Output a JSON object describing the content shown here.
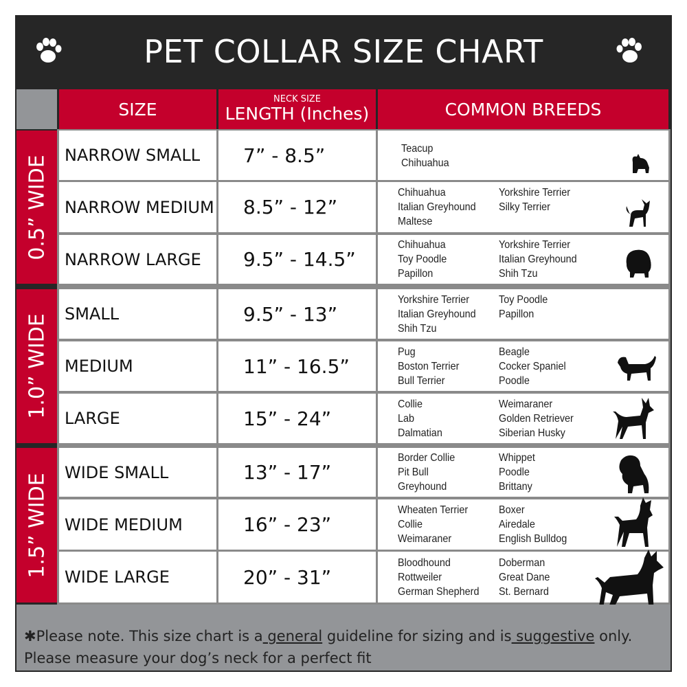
{
  "title": "PET COLLAR SIZE CHART",
  "colors": {
    "header_bg": "#262626",
    "accent_red": "#c4002c",
    "gray": "#939598"
  },
  "headers": {
    "size": "SIZE",
    "length_small": "NECK SIZE",
    "length": "LENGTH (Inches)",
    "breeds": "COMMON BREEDS"
  },
  "groups": [
    {
      "label": "0.5” WIDE"
    },
    {
      "label": "1.0” WIDE"
    },
    {
      "label": "1.5” WIDE"
    }
  ],
  "rows": [
    {
      "size": "NARROW SMALL",
      "length": "7” - 8.5”",
      "col1": [
        "Teacup",
        "Chihuahua"
      ],
      "col2": [],
      "icon": "yorkie-silhouette-icon"
    },
    {
      "size": "NARROW MEDIUM",
      "length": "8.5” - 12”",
      "col1": [
        "Chihuahua",
        "Italian Greyhound",
        "Maltese"
      ],
      "col2": [
        "Yorkshire Terrier",
        "Silky Terrier"
      ],
      "icon": "chihuahua-silhouette-icon"
    },
    {
      "size": "NARROW LARGE",
      "length": "9.5” - 14.5”",
      "col1": [
        "Chihuahua",
        "Toy Poodle",
        "Papillon"
      ],
      "col2": [
        "Yorkshire Terrier",
        "Italian Greyhound",
        "Shih Tzu"
      ],
      "icon": "pomeranian-silhouette-icon"
    },
    {
      "size": "SMALL",
      "length": "9.5” - 13”",
      "col1": [
        "Yorkshire Terrier",
        "Italian Greyhound",
        "Shih Tzu"
      ],
      "col2": [
        "Toy Poodle",
        "Papillon"
      ],
      "icon": "pomeranian-silhouette-icon"
    },
    {
      "size": "MEDIUM",
      "length": "11” - 16.5”",
      "col1": [
        "Pug",
        "Boston Terrier",
        "Bull Terrier"
      ],
      "col2": [
        "Beagle",
        "Cocker Spaniel",
        "Poodle"
      ],
      "icon": "spaniel-silhouette-icon"
    },
    {
      "size": "LARGE",
      "length": "15” - 24”",
      "col1": [
        "Collie",
        "Lab",
        "Dalmatian"
      ],
      "col2": [
        "Weimaraner",
        "Golden Retriever",
        "Siberian Husky"
      ],
      "icon": "shepherd-silhouette-icon"
    },
    {
      "size": "WIDE SMALL",
      "length": "13” - 17”",
      "col1": [
        "Border Collie",
        "Pit Bull",
        "Greyhound"
      ],
      "col2": [
        "Whippet",
        "Poodle",
        "Brittany"
      ],
      "icon": "bulldog-silhouette-icon"
    },
    {
      "size": "WIDE MEDIUM",
      "length": "16” - 23”",
      "col1": [
        "Wheaten Terrier",
        "Collie",
        "Weimaraner"
      ],
      "col2": [
        "Boxer",
        "Airedale",
        "English Bulldog"
      ],
      "icon": "pitbull-silhouette-icon"
    },
    {
      "size": "WIDE LARGE",
      "length": "20” - 31”",
      "col1": [
        "Bloodhound",
        "Rottweiler",
        "German Shepherd"
      ],
      "col2": [
        "Doberman",
        "Great Dane",
        "St. Bernard"
      ],
      "icon": "doberman-silhouette-icon"
    }
  ],
  "footer": {
    "p1": "✱Please note. This size chart is a",
    "u1": " general",
    "p2": " guideline for sizing and is",
    "u2": " suggestive",
    "p3": " only.",
    "line2": "Please measure your dog’s neck for a perfect fit"
  }
}
